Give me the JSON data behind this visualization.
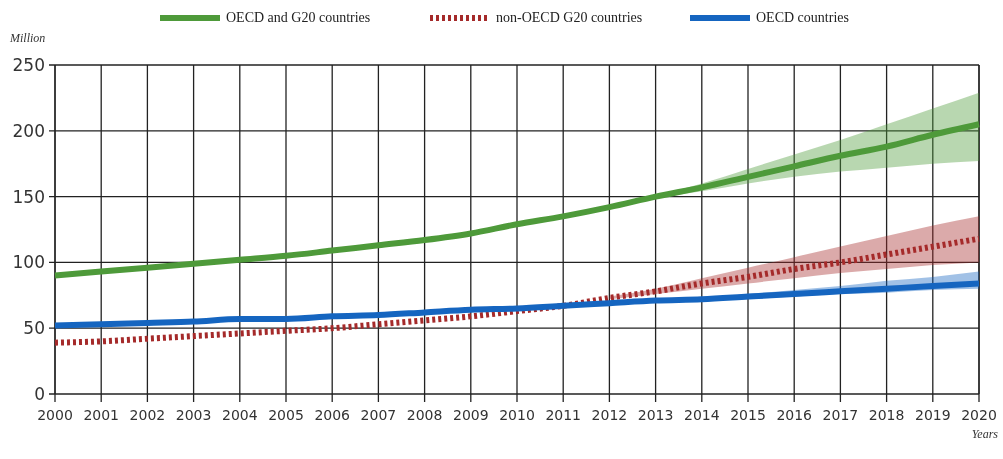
{
  "chart_data": {
    "type": "line",
    "ylabel": "Million",
    "xlabel": "Years",
    "x": [
      2000,
      2001,
      2002,
      2003,
      2004,
      2005,
      2006,
      2007,
      2008,
      2009,
      2010,
      2011,
      2012,
      2013,
      2014,
      2015,
      2016,
      2017,
      2018,
      2019,
      2020
    ],
    "xlim": [
      2000,
      2020
    ],
    "xticks": [
      2000,
      2001,
      2002,
      2003,
      2004,
      2005,
      2006,
      2007,
      2008,
      2009,
      2010,
      2011,
      2012,
      2013,
      2014,
      2015,
      2016,
      2017,
      2018,
      2019,
      2020
    ],
    "ylim": [
      0,
      250
    ],
    "yticks": [
      0,
      50,
      100,
      150,
      200,
      250
    ],
    "grid": true,
    "legend": "top",
    "series": [
      {
        "name": "OECD and G20 countries",
        "color": "#4e9a3a",
        "line_style": "solid",
        "values": [
          90,
          93,
          96,
          99,
          102,
          105,
          109,
          113,
          117,
          122,
          129,
          135,
          142,
          150,
          157,
          165,
          173,
          181,
          188,
          197,
          205
        ],
        "lower": [
          null,
          null,
          null,
          null,
          null,
          null,
          null,
          null,
          null,
          null,
          null,
          null,
          null,
          149,
          154,
          160,
          165,
          169,
          172,
          175,
          177
        ],
        "upper": [
          null,
          null,
          null,
          null,
          null,
          null,
          null,
          null,
          null,
          null,
          null,
          null,
          null,
          151,
          160,
          171,
          182,
          193,
          205,
          217,
          229
        ]
      },
      {
        "name": "non-OECD G20 countries",
        "color": "#a52a2a",
        "line_style": "dotted",
        "values": [
          39,
          40,
          42,
          44,
          46,
          48,
          50,
          53,
          56,
          59,
          63,
          67,
          73,
          78,
          84,
          89,
          95,
          100,
          106,
          112,
          118
        ],
        "lower": [
          null,
          null,
          null,
          null,
          null,
          null,
          null,
          null,
          null,
          null,
          null,
          null,
          72,
          76,
          80,
          84,
          88,
          92,
          95,
          98,
          100
        ],
        "upper": [
          null,
          null,
          null,
          null,
          null,
          null,
          null,
          null,
          null,
          null,
          null,
          null,
          74,
          80,
          88,
          96,
          104,
          112,
          120,
          128,
          135
        ]
      },
      {
        "name": "OECD countries",
        "color": "#1565c0",
        "line_style": "solid",
        "values": [
          52,
          53,
          54,
          55,
          57,
          57,
          59,
          60,
          62,
          64,
          65,
          67,
          69,
          71,
          72,
          74,
          76,
          78,
          80,
          82,
          84
        ],
        "lower": [
          null,
          null,
          null,
          null,
          null,
          null,
          null,
          null,
          null,
          null,
          null,
          null,
          null,
          70,
          71,
          72,
          74,
          76,
          77,
          79,
          80
        ],
        "upper": [
          null,
          null,
          null,
          null,
          null,
          null,
          null,
          null,
          null,
          null,
          null,
          null,
          null,
          71,
          73,
          76,
          79,
          82,
          86,
          89,
          93
        ]
      }
    ]
  }
}
